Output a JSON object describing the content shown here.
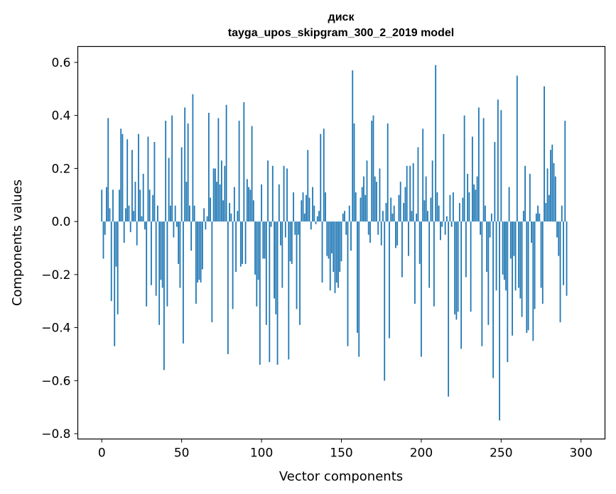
{
  "chart_data": {
    "type": "bar",
    "title": "диск",
    "subtitle": "tayga_upos_skipgram_300_2_2019 model",
    "xlabel": "Vector components",
    "ylabel": "Components values",
    "xlim": [
      -15,
      315
    ],
    "ylim": [
      -0.82,
      0.66
    ],
    "xticks": [
      0,
      50,
      100,
      150,
      200,
      250,
      300
    ],
    "yticks": [
      -0.8,
      -0.6,
      -0.4,
      -0.2,
      0.0,
      0.2,
      0.4,
      0.6
    ],
    "xtick_labels": [
      "0",
      "50",
      "100",
      "150",
      "200",
      "250",
      "300"
    ],
    "ytick_labels": [
      "−0.8",
      "−0.6",
      "−0.4",
      "−0.2",
      "0.0",
      "0.2",
      "0.4",
      "0.6"
    ],
    "bar_color": "#1f77b4",
    "values": [
      0.12,
      -0.14,
      -0.05,
      0.13,
      0.39,
      0.05,
      -0.3,
      0.12,
      -0.47,
      -0.17,
      -0.35,
      0.12,
      0.35,
      0.33,
      -0.08,
      0.05,
      0.31,
      0.06,
      -0.04,
      0.27,
      0.04,
      0.15,
      -0.09,
      0.33,
      0.12,
      0.02,
      0.18,
      -0.03,
      -0.32,
      0.32,
      0.12,
      -0.24,
      0.1,
      0.3,
      -0.28,
      0.06,
      -0.39,
      -0.22,
      -0.25,
      -0.56,
      0.38,
      -0.32,
      0.24,
      0.06,
      0.4,
      -0.06,
      0.06,
      -0.02,
      -0.16,
      -0.25,
      0.28,
      -0.46,
      0.43,
      0.15,
      0.37,
      0.06,
      -0.11,
      0.48,
      0.06,
      -0.31,
      -0.23,
      -0.22,
      -0.23,
      -0.18,
      0.05,
      -0.03,
      0.02,
      0.41,
      0.09,
      -0.38,
      0.2,
      0.2,
      0.15,
      0.39,
      0.14,
      0.23,
      0.08,
      0.21,
      0.44,
      -0.5,
      0.07,
      0.03,
      -0.33,
      0.13,
      -0.19,
      0.04,
      0.38,
      -0.17,
      -0.16,
      0.45,
      -0.16,
      0.16,
      0.13,
      0.12,
      0.36,
      0.08,
      -0.2,
      -0.32,
      -0.22,
      -0.54,
      0.14,
      -0.14,
      -0.14,
      -0.39,
      0.23,
      -0.53,
      -0.02,
      0.21,
      -0.29,
      -0.35,
      -0.54,
      0.14,
      -0.09,
      -0.25,
      0.21,
      -0.06,
      0.2,
      -0.52,
      -0.15,
      -0.16,
      0.11,
      -0.05,
      -0.33,
      -0.05,
      -0.39,
      0.08,
      0.11,
      0.03,
      0.1,
      0.27,
      0.09,
      -0.03,
      0.13,
      0.06,
      -0.01,
      0.02,
      0.04,
      0.33,
      -0.23,
      0.35,
      0.11,
      -0.13,
      -0.14,
      -0.26,
      -0.12,
      -0.19,
      -0.27,
      -0.23,
      -0.25,
      -0.19,
      -0.15,
      0.03,
      0.04,
      -0.05,
      -0.47,
      0.06,
      -0.11,
      0.57,
      0.37,
      0.11,
      -0.42,
      -0.51,
      0.09,
      0.13,
      0.17,
      0.1,
      0.23,
      -0.05,
      -0.08,
      0.38,
      0.4,
      0.17,
      0.15,
      -0.05,
      0.2,
      -0.09,
      0.04,
      -0.6,
      0.07,
      0.37,
      -0.44,
      0.09,
      0.03,
      0.06,
      -0.1,
      -0.09,
      0.1,
      0.15,
      -0.21,
      0.07,
      0.13,
      0.21,
      -0.13,
      0.21,
      0.04,
      0.22,
      -0.31,
      0.03,
      0.28,
      -0.16,
      -0.51,
      0.35,
      0.08,
      0.17,
      0.04,
      -0.25,
      0.09,
      0.23,
      -0.32,
      0.59,
      0.11,
      0.06,
      -0.07,
      -0.02,
      0.33,
      -0.05,
      0.02,
      -0.66,
      0.1,
      -0.02,
      0.11,
      -0.35,
      -0.37,
      -0.34,
      0.07,
      -0.48,
      0.09,
      0.4,
      -0.21,
      0.18,
      0.11,
      -0.34,
      0.32,
      0.14,
      0.12,
      0.17,
      0.43,
      -0.05,
      -0.47,
      0.39,
      0.06,
      -0.19,
      -0.39,
      -0.06,
      0.03,
      -0.59,
      0.3,
      -0.26,
      0.46,
      -0.75,
      0.42,
      -0.2,
      -0.22,
      -0.26,
      -0.53,
      0.13,
      -0.14,
      -0.43,
      -0.13,
      -0.26,
      0.55,
      -0.25,
      -0.29,
      -0.36,
      0.04,
      0.21,
      -0.42,
      -0.41,
      0.18,
      -0.08,
      -0.45,
      -0.33,
      0.03,
      0.06,
      0.03,
      -0.25,
      -0.31,
      0.51,
      0.07,
      0.2,
      0.1,
      0.27,
      0.29,
      0.22,
      0.17,
      -0.06,
      -0.13,
      -0.38,
      0.06,
      -0.24,
      0.38,
      -0.28
    ]
  }
}
